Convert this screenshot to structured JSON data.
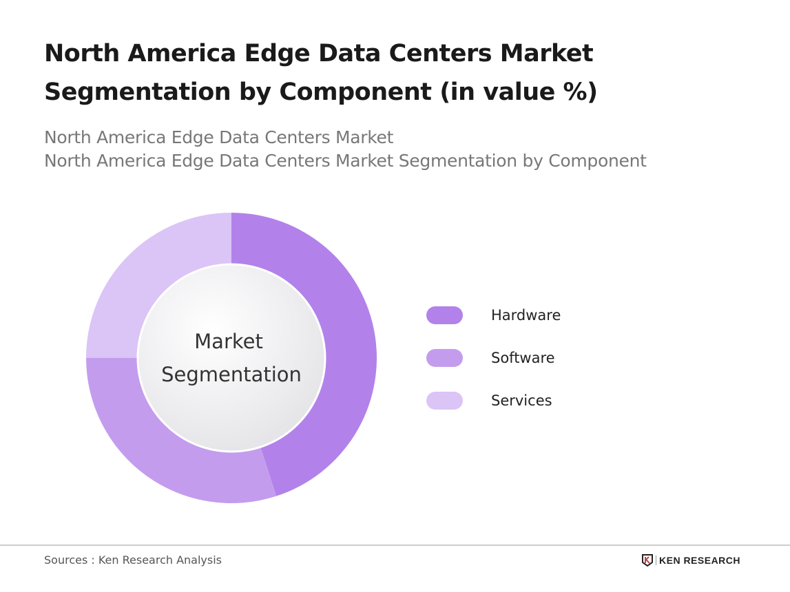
{
  "title": "North America Edge Data Centers Market Segmentation by Component (in value %)",
  "subtitle_1": "North America Edge Data Centers Market",
  "subtitle_2": "North America Edge Data Centers Market Segmentation by Component",
  "chart_data": {
    "type": "pie",
    "variant": "donut",
    "center_label": "Market Segmentation",
    "categories": [
      "Hardware",
      "Software",
      "Services"
    ],
    "values": [
      45,
      30,
      25
    ],
    "unit": "%",
    "colors": [
      "#b282ea",
      "#c49cee",
      "#dbc4f6"
    ],
    "legend": "right"
  },
  "footer": {
    "source": "Sources : Ken Research Analysis",
    "logo": "KEN RESEARCH"
  }
}
